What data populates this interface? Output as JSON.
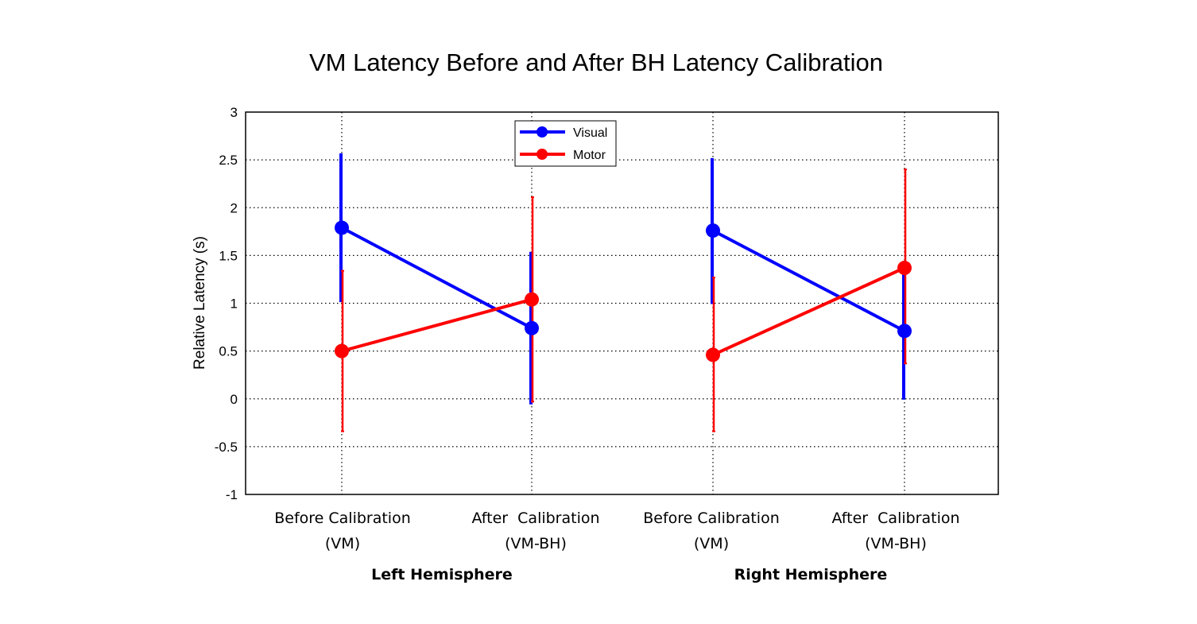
{
  "chart_data": {
    "type": "line",
    "title": "VM Latency Before and After BH Latency Calibration",
    "ylabel": "Relative Latency (s)",
    "xlabel": "",
    "ylim": [
      -1,
      3
    ],
    "yticks": [
      "3",
      "2.5",
      "2",
      "1.5",
      "1",
      "0.5",
      "0",
      "-0.5",
      "-1"
    ],
    "ytick_values": [
      3,
      2.5,
      2,
      1.5,
      1,
      0.5,
      0,
      -0.5,
      -1
    ],
    "grid": true,
    "legend_position": "top-center",
    "categories": [
      {
        "line1": "Before Calibration",
        "line2": "(VM)"
      },
      {
        "line1": "After  Calibration",
        "line2": "(VM-BH)"
      },
      {
        "line1": "Before Calibration",
        "line2": "(VM)"
      },
      {
        "line1": "After  Calibration",
        "line2": "(VM-BH)"
      }
    ],
    "groups": [
      "Left Hemisphere",
      "Right Hemisphere"
    ],
    "series": [
      {
        "name": "Visual",
        "color": "#0000ff",
        "segments": [
          {
            "values": [
              1.79,
              0.74
            ],
            "err_low": [
              1.02,
              -0.05
            ],
            "err_high": [
              2.56,
              1.53
            ]
          },
          {
            "values": [
              1.76,
              0.71
            ],
            "err_low": [
              1.0,
              0.0
            ],
            "err_high": [
              2.51,
              1.39
            ]
          }
        ]
      },
      {
        "name": "Motor",
        "color": "#ff0000",
        "segments": [
          {
            "values": [
              0.5,
              1.04
            ],
            "err_low": [
              -0.34,
              -0.03
            ],
            "err_high": [
              1.34,
              2.11
            ]
          },
          {
            "values": [
              0.46,
              1.37
            ],
            "err_low": [
              -0.34,
              0.37
            ],
            "err_high": [
              1.27,
              2.4
            ]
          }
        ]
      }
    ]
  }
}
